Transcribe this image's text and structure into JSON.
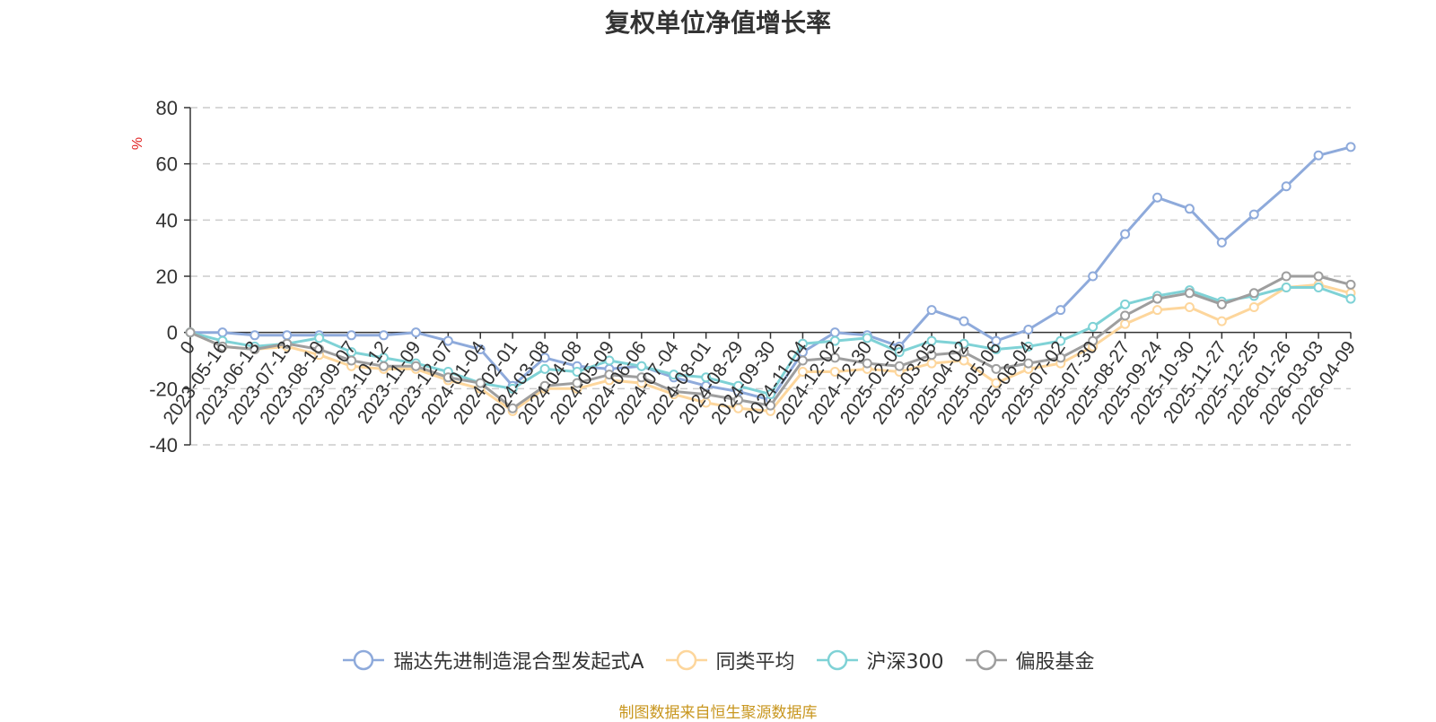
{
  "chart_data": {
    "type": "line",
    "title": "复权单位净值增长率",
    "ylabel": "%",
    "xlabel": "",
    "ylim": [
      -40,
      80
    ],
    "yticks": [
      80,
      60,
      40,
      20,
      0,
      -20,
      -40
    ],
    "grid": true,
    "legend_position": "bottom",
    "x": [
      "0",
      "2023-05-16",
      "2023-06-13",
      "2023-07-13",
      "2023-08-10",
      "2023-09-07",
      "2023-10-12",
      "2023-11-09",
      "2023-12-07",
      "2024-01-04",
      "2024-02-01",
      "2024-03-08",
      "2024-04-08",
      "2024-05-09",
      "2024-06-06",
      "2024-07-04",
      "2024-08-01",
      "2024-08-29",
      "2024-09-30",
      "2024-11-04",
      "2024-12-02",
      "2024-12-30",
      "2025-02-05",
      "2025-03-05",
      "2025-04-02",
      "2025-05-06",
      "2025-06-04",
      "2025-07-02",
      "2025-07-30",
      "2025-08-27",
      "2025-09-24",
      "2025-10-30",
      "2025-11-27",
      "2025-12-25",
      "2026-01-26",
      "2026-03-03",
      "2026-04-09"
    ],
    "series": [
      {
        "name": "瑞达先进制造混合型发起式A",
        "color": "#8eaadb",
        "values": [
          0,
          0,
          -1,
          -1,
          -1,
          -1,
          -1,
          0,
          -3,
          -6,
          -19,
          -9,
          -12,
          -13,
          -12,
          -16,
          -19,
          -21,
          -24,
          -7,
          0,
          -1,
          -5,
          8,
          4,
          -3,
          1,
          8,
          20,
          35,
          48,
          44,
          32,
          42,
          52,
          63,
          66
        ]
      },
      {
        "name": "同类平均",
        "color": "#fdd69c",
        "values": [
          0,
          -5,
          -6,
          -5,
          -8,
          -12,
          -13,
          -13,
          -17,
          -20,
          -28,
          -20,
          -20,
          -17,
          -18,
          -22,
          -25,
          -27,
          -28,
          -14,
          -14,
          -13,
          -14,
          -11,
          -10,
          -18,
          -13,
          -11,
          -5,
          3,
          8,
          9,
          4,
          9,
          16,
          17,
          14
        ]
      },
      {
        "name": "沪深300",
        "color": "#7fd2d6",
        "values": [
          0,
          -3,
          -5,
          -4,
          -2,
          -7,
          -9,
          -11,
          -14,
          -18,
          -20,
          -13,
          -14,
          -10,
          -12,
          -15,
          -16,
          -19,
          -22,
          -4,
          -3,
          -2,
          -7,
          -3,
          -4,
          -6,
          -5,
          -3,
          2,
          10,
          13,
          15,
          11,
          13,
          16,
          16,
          12
        ]
      },
      {
        "name": "偏股基金",
        "color": "#9e9e9e",
        "values": [
          0,
          -5,
          -6,
          -4,
          -6,
          -10,
          -12,
          -12,
          -16,
          -18,
          -27,
          -19,
          -18,
          -15,
          -16,
          -21,
          -22,
          -24,
          -26,
          -10,
          -9,
          -11,
          -12,
          -8,
          -7,
          -13,
          -11,
          -9,
          -3,
          6,
          12,
          14,
          10,
          14,
          20,
          20,
          17
        ]
      }
    ]
  },
  "source_note": "制图数据来自恒生聚源数据库"
}
